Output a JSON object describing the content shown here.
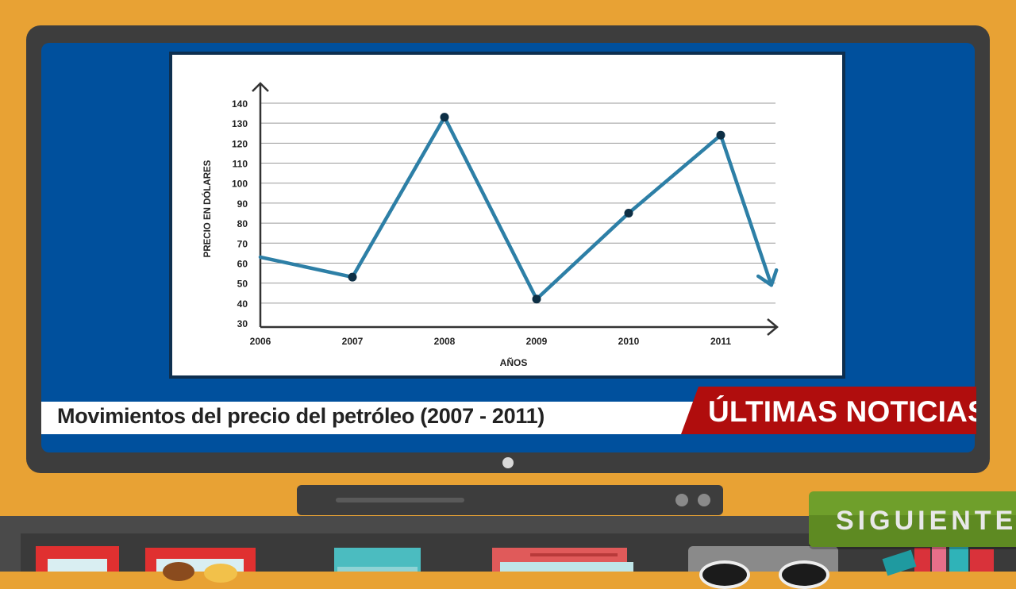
{
  "caption": {
    "title": "Movimientos del precio del petróleo (2007 - 2011)",
    "tag": "ÚLTIMAS NOTICIAS"
  },
  "navigation": {
    "next_label": "SIGUIENTE"
  },
  "colors": {
    "background": "#e8a234",
    "screen": "#00509d",
    "line": "#2d7fa6",
    "marker": "#0d2f45",
    "news_tag": "#b00d0d",
    "next_button": "#6f9f2b"
  },
  "chart_data": {
    "type": "line",
    "title": "",
    "xlabel": "AÑOS",
    "ylabel": "PRECIO EN DÓLARES",
    "categories": [
      "2006",
      "2007",
      "2008",
      "2009",
      "2010",
      "2011"
    ],
    "yticks": [
      30,
      40,
      50,
      60,
      70,
      80,
      90,
      100,
      110,
      120,
      130,
      140
    ],
    "ylim": [
      30,
      140
    ],
    "grid": true,
    "series": [
      {
        "x": [
          2006,
          2007,
          2008,
          2009,
          2010,
          2011,
          2011.55
        ],
        "values": [
          63,
          53,
          133,
          42,
          85,
          124,
          49
        ],
        "markers": [
          false,
          true,
          true,
          true,
          true,
          true,
          false
        ],
        "end_arrow": true
      }
    ]
  }
}
